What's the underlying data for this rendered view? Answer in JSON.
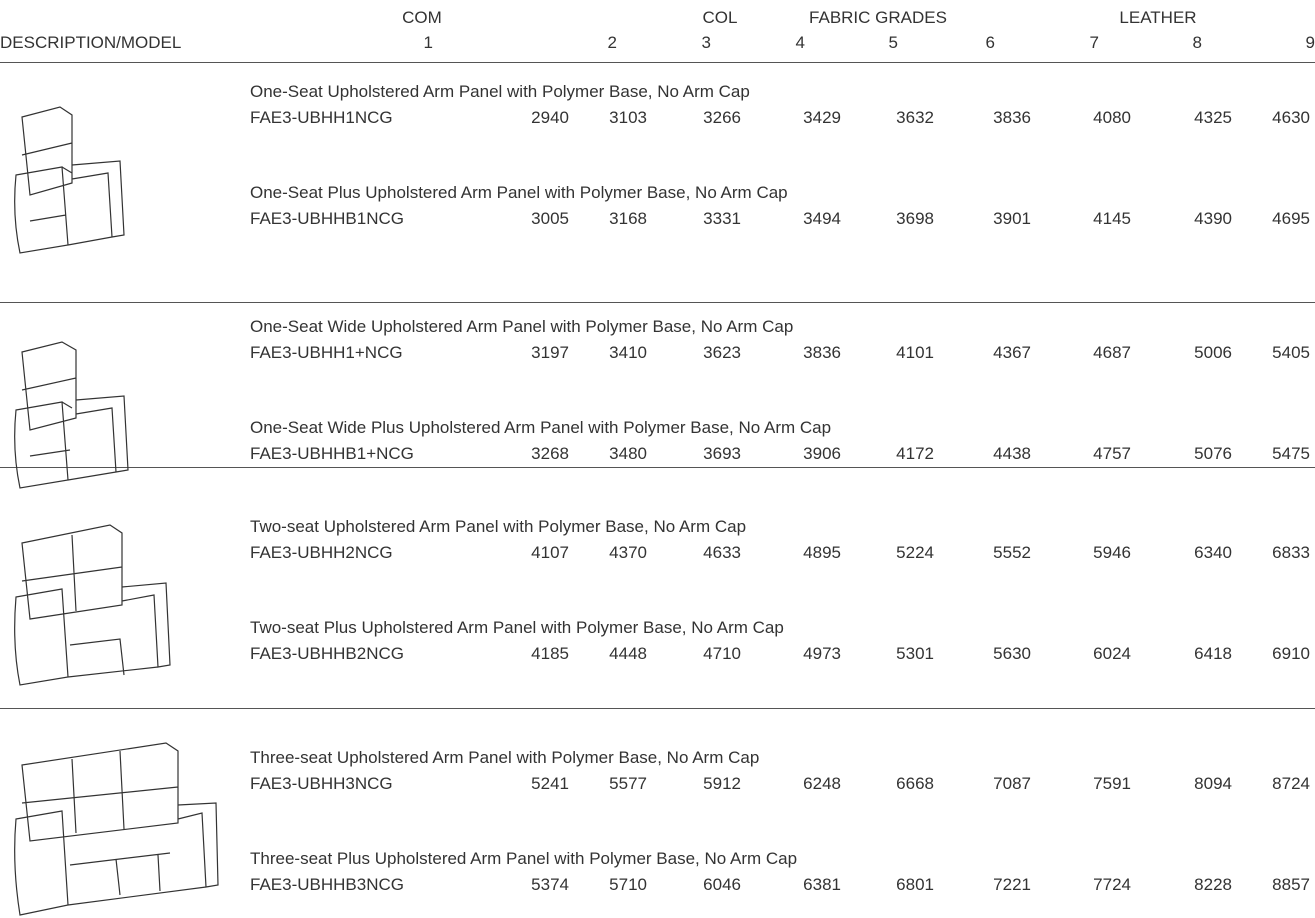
{
  "header": {
    "groups": [
      "COM",
      "COL",
      "FABRIC GRADES",
      "LEATHER"
    ],
    "description": "DESCRIPTION/MODEL",
    "columns": [
      "1",
      "2",
      "3",
      "4",
      "5",
      "6",
      "7",
      "8",
      "9"
    ]
  },
  "groups": [
    {
      "items": [
        {
          "description": "One-Seat Upholstered Arm Panel with Polymer Base, No Arm Cap",
          "model": "FAE3-UBHH1NCG",
          "prices": [
            "2940",
            "3103",
            "3266",
            "3429",
            "3632",
            "3836",
            "4080",
            "4325",
            "4630"
          ]
        },
        {
          "description": "One-Seat Plus Upholstered Arm Panel with Polymer Base, No Arm Cap",
          "model": "FAE3-UBHHB1NCG",
          "prices": [
            "3005",
            "3168",
            "3331",
            "3494",
            "3698",
            "3901",
            "4145",
            "4390",
            "4695"
          ]
        }
      ]
    },
    {
      "items": [
        {
          "description": "One-Seat Wide Upholstered Arm Panel with Polymer Base, No Arm Cap",
          "model": "FAE3-UBHH1+NCG",
          "prices": [
            "3197",
            "3410",
            "3623",
            "3836",
            "4101",
            "4367",
            "4687",
            "5006",
            "5405"
          ]
        },
        {
          "description": "One-Seat Wide Plus Upholstered Arm Panel with Polymer Base, No Arm Cap",
          "model": "FAE3-UBHHB1+NCG",
          "prices": [
            "3268",
            "3480",
            "3693",
            "3906",
            "4172",
            "4438",
            "4757",
            "5076",
            "5475"
          ]
        }
      ]
    },
    {
      "items": [
        {
          "description": "Two-seat Upholstered Arm Panel with Polymer Base, No Arm Cap",
          "model": "FAE3-UBHH2NCG",
          "prices": [
            "4107",
            "4370",
            "4633",
            "4895",
            "5224",
            "5552",
            "5946",
            "6340",
            "6833"
          ]
        },
        {
          "description": "Two-seat Plus Upholstered Arm Panel with Polymer Base, No Arm Cap",
          "model": "FAE3-UBHHB2NCG",
          "prices": [
            "4185",
            "4448",
            "4710",
            "4973",
            "5301",
            "5630",
            "6024",
            "6418",
            "6910"
          ]
        }
      ]
    },
    {
      "items": [
        {
          "description": "Three-seat Upholstered Arm Panel with Polymer Base, No Arm Cap",
          "model": "FAE3-UBHH3NCG",
          "prices": [
            "5241",
            "5577",
            "5912",
            "6248",
            "6668",
            "7087",
            "7591",
            "8094",
            "8724"
          ]
        },
        {
          "description": "Three-seat Plus Upholstered Arm Panel with Polymer Base, No Arm Cap",
          "model": "FAE3-UBHHB3NCG",
          "prices": [
            "5374",
            "5710",
            "6046",
            "6381",
            "6801",
            "7221",
            "7724",
            "8228",
            "8857"
          ]
        }
      ]
    }
  ]
}
